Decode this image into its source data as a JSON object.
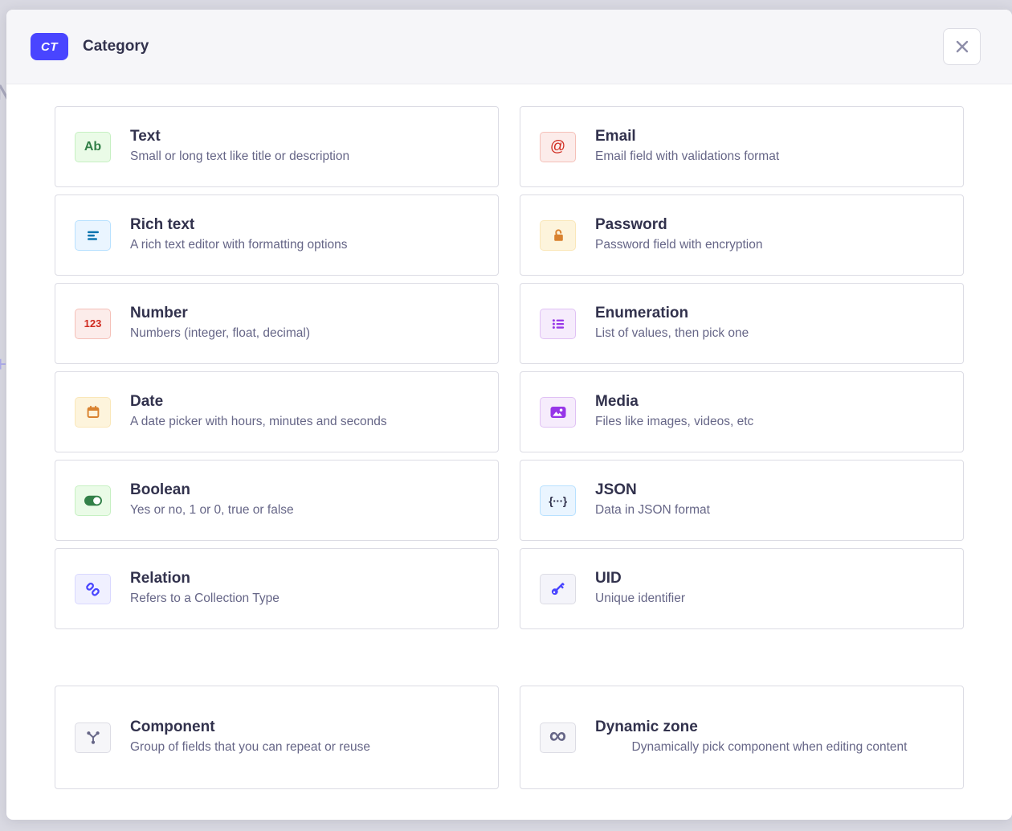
{
  "backdrop": {
    "letter": "N",
    "plus": "+"
  },
  "header": {
    "badge": "CT",
    "title": "Category"
  },
  "themes": {
    "green": {
      "bg": "#eafbe7",
      "border": "#c6f0c2",
      "fg": "#328048"
    },
    "red": {
      "bg": "#fcecea",
      "border": "#f5c0b8",
      "fg": "#d02b20"
    },
    "blue": {
      "bg": "#eaf5ff",
      "border": "#b8e1ff",
      "fg": "#0c75af"
    },
    "blueDark": {
      "bg": "#eaf5ff",
      "border": "#b8e1ff",
      "fg": "#32324d"
    },
    "yellow": {
      "bg": "#fdf4dc",
      "border": "#fae7b9",
      "fg": "#d9822f"
    },
    "purple": {
      "bg": "#f6ecfc",
      "border": "#e0c1f4",
      "fg": "#9736e8"
    },
    "indigo": {
      "bg": "#f0f0ff",
      "border": "#d9d8ff",
      "fg": "#4945ff"
    },
    "indigoGray": {
      "bg": "#f4f4fa",
      "border": "#dcdce4",
      "fg": "#4945ff"
    },
    "neutral": {
      "bg": "#f6f6f9",
      "border": "#dcdce4",
      "fg": "#666687"
    }
  },
  "fields": [
    {
      "id": "text",
      "icon": "text-icon",
      "name": "Text",
      "desc": "Small or long text like title or description",
      "theme": "green",
      "glyph": "Ab"
    },
    {
      "id": "email",
      "icon": "email-icon",
      "name": "Email",
      "desc": "Email field with validations format",
      "theme": "red",
      "glyph": "@"
    },
    {
      "id": "richtext",
      "icon": "rich-text-icon",
      "name": "Rich text",
      "desc": "A rich text editor with formatting options",
      "theme": "blue"
    },
    {
      "id": "password",
      "icon": "password-icon",
      "name": "Password",
      "desc": "Password field with encryption",
      "theme": "yellow"
    },
    {
      "id": "number",
      "icon": "number-icon",
      "name": "Number",
      "desc": "Numbers (integer, float, decimal)",
      "theme": "red",
      "glyph": "123"
    },
    {
      "id": "enumeration",
      "icon": "enumeration-icon",
      "name": "Enumeration",
      "desc": "List of values, then pick one",
      "theme": "purple"
    },
    {
      "id": "date",
      "icon": "date-icon",
      "name": "Date",
      "desc": "A date picker with hours, minutes and seconds",
      "theme": "yellow"
    },
    {
      "id": "media",
      "icon": "media-icon",
      "name": "Media",
      "desc": "Files like images, videos, etc",
      "theme": "purple"
    },
    {
      "id": "boolean",
      "icon": "boolean-icon",
      "name": "Boolean",
      "desc": "Yes or no, 1 or 0, true or false",
      "theme": "green"
    },
    {
      "id": "json",
      "icon": "json-icon",
      "name": "JSON",
      "desc": "Data in JSON format",
      "theme": "blueDark",
      "glyph": "{···}"
    },
    {
      "id": "relation",
      "icon": "relation-icon",
      "name": "Relation",
      "desc": "Refers to a Collection Type",
      "theme": "indigo"
    },
    {
      "id": "uid",
      "icon": "uid-icon",
      "name": "UID",
      "desc": "Unique identifier",
      "theme": "indigoGray"
    }
  ],
  "advanced_fields": [
    {
      "id": "component",
      "icon": "component-icon",
      "name": "Component",
      "desc": "Group of fields that you can repeat or reuse",
      "theme": "neutral"
    },
    {
      "id": "dynamiczone",
      "icon": "dynamic-zone-icon",
      "name": "Dynamic zone",
      "desc": "Dynamically pick component when editing content",
      "theme": "neutral",
      "glyph": "∞",
      "center_desc": true
    }
  ],
  "colors": {
    "accent": "#4945ff",
    "title_text": "#32324d",
    "desc_text": "#666687",
    "card_border": "#dcdce4",
    "header_bg": "#f6f6f9",
    "backdrop": "#d9d9e2",
    "close_icon": "#8e8ea9"
  }
}
